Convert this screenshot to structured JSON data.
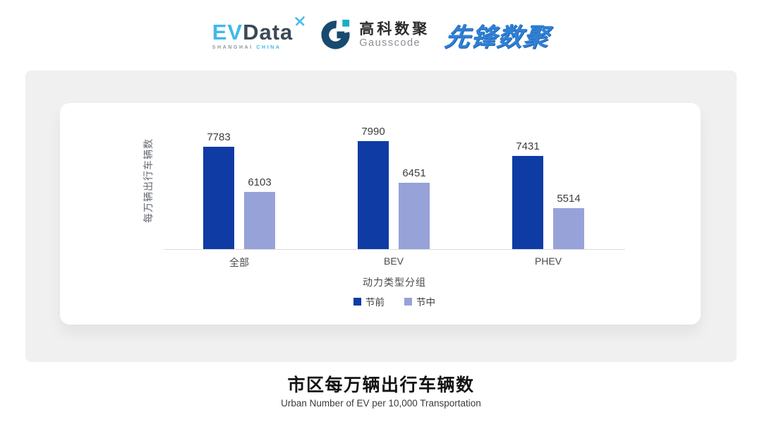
{
  "header": {
    "evdata": {
      "ev": "EV",
      "data": "Data",
      "sub_left": "SHANGHAI",
      "sub_right": "CHINA"
    },
    "gausscode": {
      "cn": "高科数聚",
      "en": "Gausscode"
    },
    "pioneer": {
      "text": "先锋数聚"
    },
    "colors": {
      "evdata_blue": "#3FB9E8",
      "evdata_dark": "#3C4956",
      "gausscode_navy": "#174A6E",
      "gausscode_teal": "#16AFC4",
      "pioneer_blue": "#2F80D5"
    }
  },
  "chart_data": {
    "type": "bar",
    "title": "市区每万辆出行车辆数",
    "categories": [
      "全部",
      "BEV",
      "PHEV"
    ],
    "series": [
      {
        "name": "节前",
        "color": "#0E3BA4",
        "values": [
          7783,
          7990,
          7431
        ]
      },
      {
        "name": "节中",
        "color": "#97A2D8",
        "values": [
          6103,
          6451,
          5514
        ]
      }
    ],
    "xlabel": "动力类型分组",
    "ylabel": "每万辆出行车辆数",
    "ylim": [
      4000,
      8500
    ],
    "grid": false,
    "legend_position": "bottom",
    "value_labels": true
  },
  "footer": {
    "title": "市区每万辆出行车辆数",
    "subtitle": "Urban Number of EV per 10,000 Transportation"
  }
}
